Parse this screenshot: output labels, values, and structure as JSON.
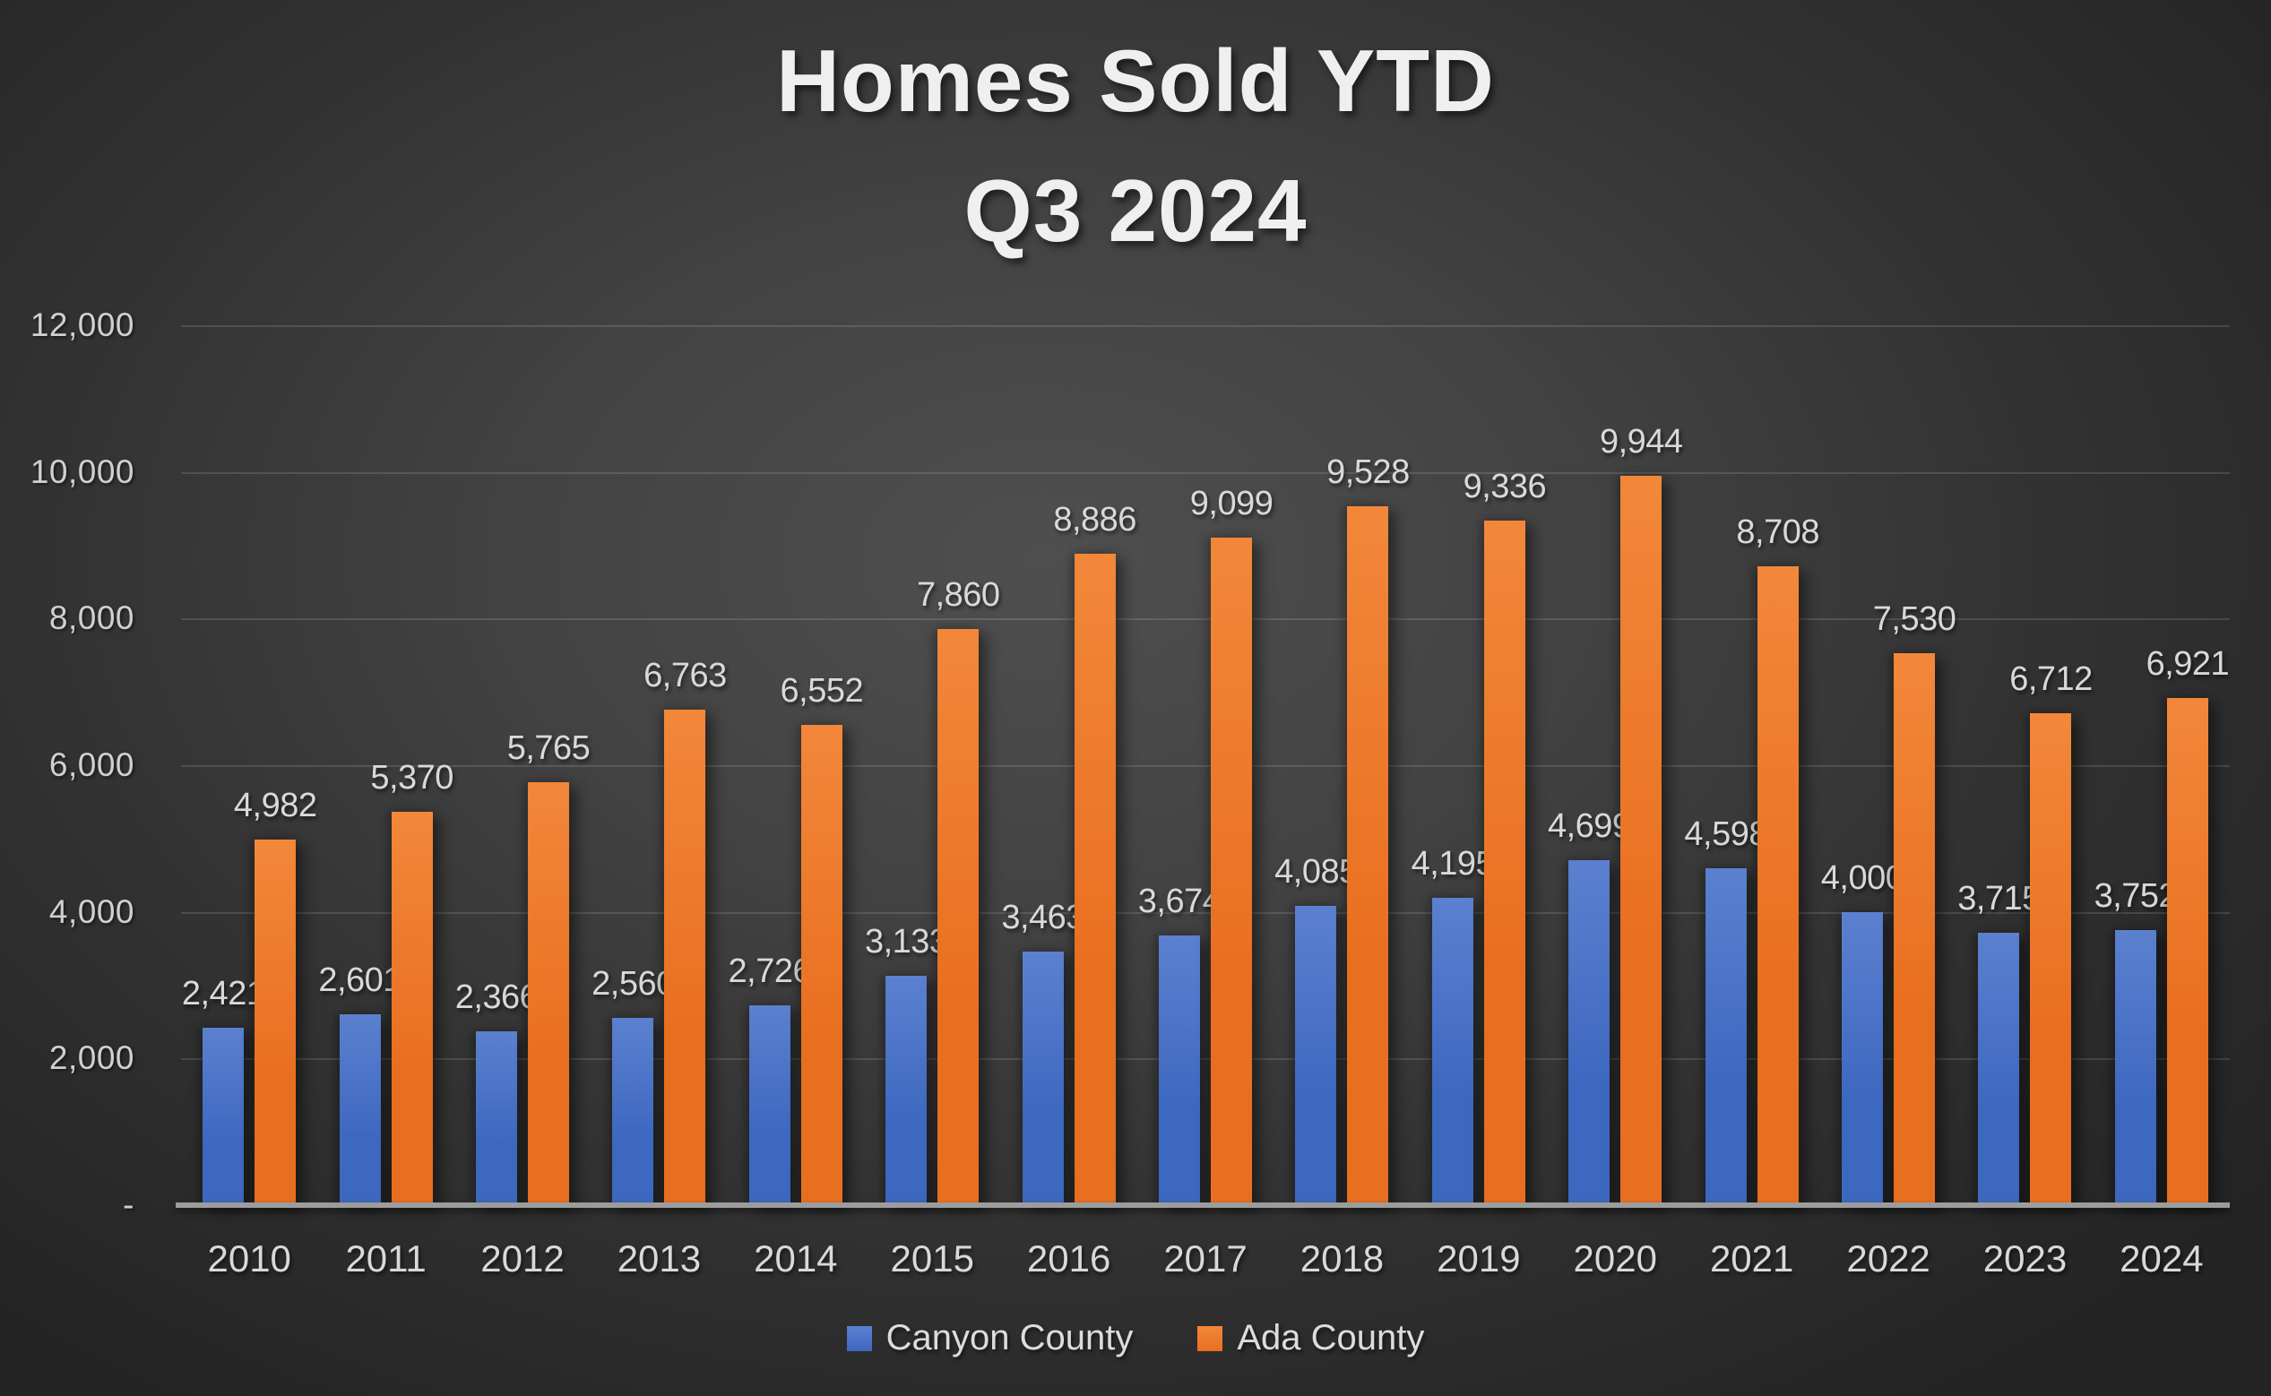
{
  "title": {
    "line1": "Homes Sold YTD",
    "line2": "Q3 2024"
  },
  "chart_data": {
    "type": "bar",
    "title": "Homes Sold YTD Q3 2024",
    "xlabel": "",
    "ylabel": "",
    "categories": [
      "2010",
      "2011",
      "2012",
      "2013",
      "2014",
      "2015",
      "2016",
      "2017",
      "2018",
      "2019",
      "2020",
      "2021",
      "2022",
      "2023",
      "2024"
    ],
    "series": [
      {
        "name": "Canyon County",
        "color": "#3d68c0",
        "color_light": "#5b80cf",
        "values": [
          2421,
          2601,
          2366,
          2560,
          2726,
          3133,
          3463,
          3674,
          4085,
          4195,
          4699,
          4598,
          4000,
          3715,
          3752
        ]
      },
      {
        "name": "Ada County",
        "color": "#e96f20",
        "color_light": "#f2873a",
        "values": [
          4982,
          5370,
          5765,
          6763,
          6552,
          7860,
          8886,
          9099,
          9528,
          9336,
          9944,
          8708,
          7530,
          6712,
          6921
        ]
      }
    ],
    "ylim": [
      0,
      12000
    ],
    "y_tick_interval": 2000,
    "y_tick_labels": [
      "-",
      "2,000",
      "4,000",
      "6,000",
      "8,000",
      "10,000",
      "12,000"
    ],
    "grid": true,
    "data_labels": true,
    "legend_position": "bottom"
  },
  "colors": {
    "background_center": "#4f4f4f",
    "background_edge": "#242424",
    "gridline": "rgba(255,255,255,0.13)",
    "axis_line": "#9c9c9c",
    "text": "#d9d9d9",
    "title_text": "#efefef"
  }
}
